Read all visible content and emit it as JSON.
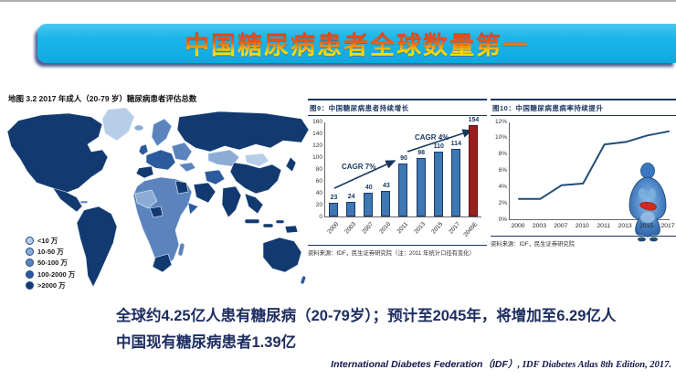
{
  "banner": {
    "title": "中国糖尿病患者全球数量第一"
  },
  "colors": {
    "banner_cyan": "#1bb6e9",
    "banner_shadow": "#112a6e",
    "title_gradient_top": "#dd3318",
    "title_gradient_bottom": "#fff200",
    "accent_navy": "#17375e",
    "summary_navy": "#1e2e62"
  },
  "map": {
    "title": "地图 3.2 2017 年成人（20-79 岁）糖尿病患者评估总数",
    "legend": [
      {
        "label": "<10 万",
        "color": "#b7cee8"
      },
      {
        "label": "10-50 万",
        "color": "#8cacd6"
      },
      {
        "label": "50-100 万",
        "color": "#5b84bd"
      },
      {
        "label": "100-2000 万",
        "color": "#2c5a9e"
      },
      {
        "label": ">2000 万",
        "color": "#123a70"
      }
    ]
  },
  "chart_data": [
    {
      "type": "bar",
      "title": "图9：中国糖尿病患者持续增长",
      "categories": [
        "2000",
        "2003",
        "2007",
        "2010",
        "2011",
        "2013",
        "2015",
        "2017",
        "2045E"
      ],
      "values": [
        23,
        24,
        40,
        43,
        90,
        98,
        110,
        114,
        154
      ],
      "ylim": [
        0,
        160
      ],
      "ytick_step": 20,
      "bar_color": "#3f76b4",
      "highlight_index": 8,
      "highlight_color": "#9b1e1e",
      "annotations": [
        "CAGR 7%",
        "CAGR 4%"
      ],
      "grid": false,
      "legend_position": "none",
      "source": "资料来源：IDF，民生证券研究院（注：2011 年统计口径有变化）"
    },
    {
      "type": "line",
      "title": "图10：中国糖尿病患病率持续提升",
      "x": [
        "2000",
        "2003",
        "2007",
        "2010",
        "2011",
        "2013",
        "2015",
        "2017"
      ],
      "values_pct": [
        2.6,
        2.6,
        4.3,
        4.5,
        9.3,
        9.6,
        10.4,
        10.9
      ],
      "ylim_pct": [
        0,
        12
      ],
      "ytick_step_pct": 2,
      "line_color": "#1f4e79",
      "grid": false,
      "legend_position": "none",
      "source": "资料来源：IDF，民生证券研究院"
    }
  ],
  "summary": {
    "line1": "全球约4.25亿人患有糖尿病（20-79岁）；预计至2045年，将增加至6.29亿人",
    "line2": "中国现有糖尿病患者1.39亿"
  },
  "citation": {
    "part1": "International Diabetes Federation（IDF）,",
    "part2": " IDF Diabetes Atlas 8th Edition, 2017."
  }
}
